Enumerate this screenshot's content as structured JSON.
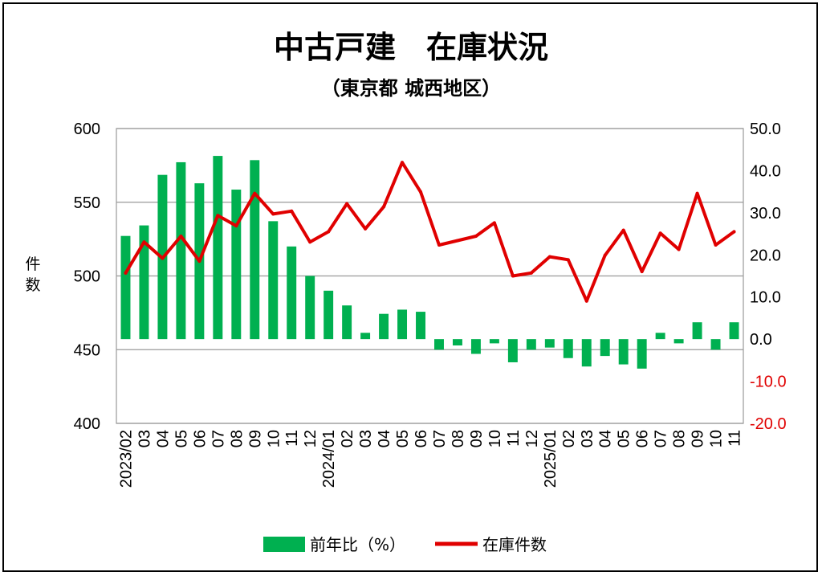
{
  "chart_data": {
    "type": "bar+line",
    "title": "中古戸建　在庫状況",
    "subtitle": "（東京都 城西地区）",
    "ylabel_left": "件数",
    "ylim_left": [
      400,
      600
    ],
    "yticks_left": [
      "600",
      "550",
      "500",
      "450",
      "400"
    ],
    "ylim_right": [
      -20,
      50
    ],
    "yticks_right": [
      "50.0",
      "40.0",
      "30.0",
      "20.0",
      "10.0",
      "0.0",
      "-10.0",
      "-20.0"
    ],
    "x_labels": [
      "2023/02",
      "03",
      "04",
      "05",
      "06",
      "07",
      "08",
      "09",
      "10",
      "11",
      "12",
      "2024/01",
      "02",
      "03",
      "04",
      "05",
      "06",
      "07",
      "08",
      "09",
      "10",
      "11",
      "12",
      "2025/01",
      "02",
      "03",
      "04",
      "05",
      "06",
      "07",
      "08",
      "09",
      "10",
      "11"
    ],
    "series": [
      {
        "name": "前年比（%）",
        "type": "bar",
        "axis": "right",
        "color": "#00b050",
        "values": [
          24.5,
          27.0,
          39.0,
          42.0,
          37.0,
          43.5,
          35.5,
          42.5,
          28.0,
          22.0,
          15.0,
          11.5,
          8.0,
          1.5,
          6.0,
          7.0,
          6.5,
          -2.5,
          -1.5,
          -3.5,
          -1.0,
          -5.5,
          -2.5,
          -2.0,
          -4.5,
          -6.5,
          -4.0,
          -6.0,
          -7.0,
          1.5,
          -1.0,
          4.0,
          -2.5,
          4.0
        ]
      },
      {
        "name": "在庫件数",
        "type": "line",
        "axis": "left",
        "color": "#e00000",
        "values": [
          502,
          523,
          512,
          527,
          510,
          541,
          534,
          556,
          542,
          544,
          523,
          530,
          549,
          532,
          547,
          577,
          557,
          521,
          524,
          527,
          536,
          500,
          502,
          513,
          511,
          483,
          514,
          531,
          503,
          529,
          518,
          556,
          521,
          530
        ]
      }
    ],
    "legend_position": "bottom",
    "grid": true
  }
}
